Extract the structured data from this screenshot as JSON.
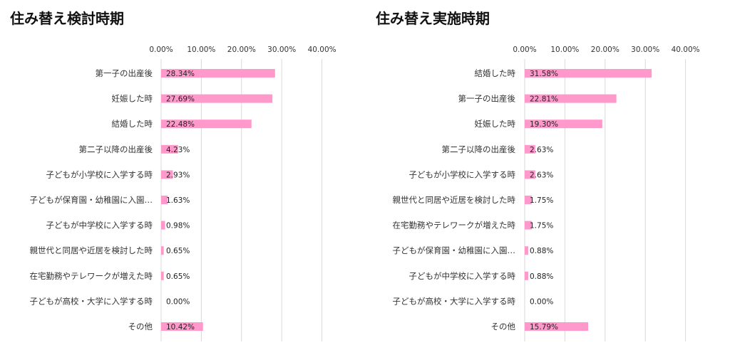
{
  "chart_data": [
    {
      "type": "bar",
      "orientation": "horizontal",
      "title": "住み替え検討時期",
      "xlim": [
        0,
        40
      ],
      "ticks": [
        "0.00%",
        "10.00%",
        "20.00%",
        "30.00%",
        "40.00%"
      ],
      "grid": true,
      "color": "#ff99cc",
      "categories": [
        "第一子の出産後",
        "妊娠した時",
        "結婚した時",
        "第二子以降の出産後",
        "子どもが小学校に入学する時",
        "子どもが保育園・幼稚園に入園…",
        "子どもが中学校に入学する時",
        "親世代と同居や近居を検討した時",
        "在宅勤務やテレワークが増えた時",
        "子どもが高校・大学に入学する時",
        "その他"
      ],
      "values": [
        28.34,
        27.69,
        22.48,
        4.23,
        2.93,
        1.63,
        0.98,
        0.65,
        0.65,
        0.0,
        10.42
      ],
      "labels": [
        "28.34%",
        "27.69%",
        "22.48%",
        "4.23%",
        "2.93%",
        "1.63%",
        "0.98%",
        "0.65%",
        "0.65%",
        "0.00%",
        "10.42%"
      ]
    },
    {
      "type": "bar",
      "orientation": "horizontal",
      "title": "住み替え実施時期",
      "xlim": [
        0,
        40
      ],
      "ticks": [
        "0.00%",
        "10.00%",
        "20.00%",
        "30.00%",
        "40.00%"
      ],
      "grid": true,
      "color": "#ff99cc",
      "categories": [
        "結婚した時",
        "第一子の出産後",
        "妊娠した時",
        "第二子以降の出産後",
        "子どもが小学校に入学する時",
        "親世代と同居や近居を検討した時",
        "在宅勤務やテレワークが増えた時",
        "子どもが保育園・幼稚園に入園…",
        "子どもが中学校に入学する時",
        "子どもが高校・大学に入学する時",
        "その他"
      ],
      "values": [
        31.58,
        22.81,
        19.3,
        2.63,
        2.63,
        1.75,
        1.75,
        0.88,
        0.88,
        0.0,
        15.79
      ],
      "labels": [
        "31.58%",
        "22.81%",
        "19.30%",
        "2.63%",
        "2.63%",
        "1.75%",
        "1.75%",
        "0.88%",
        "0.88%",
        "0.00%",
        "15.79%"
      ]
    }
  ]
}
